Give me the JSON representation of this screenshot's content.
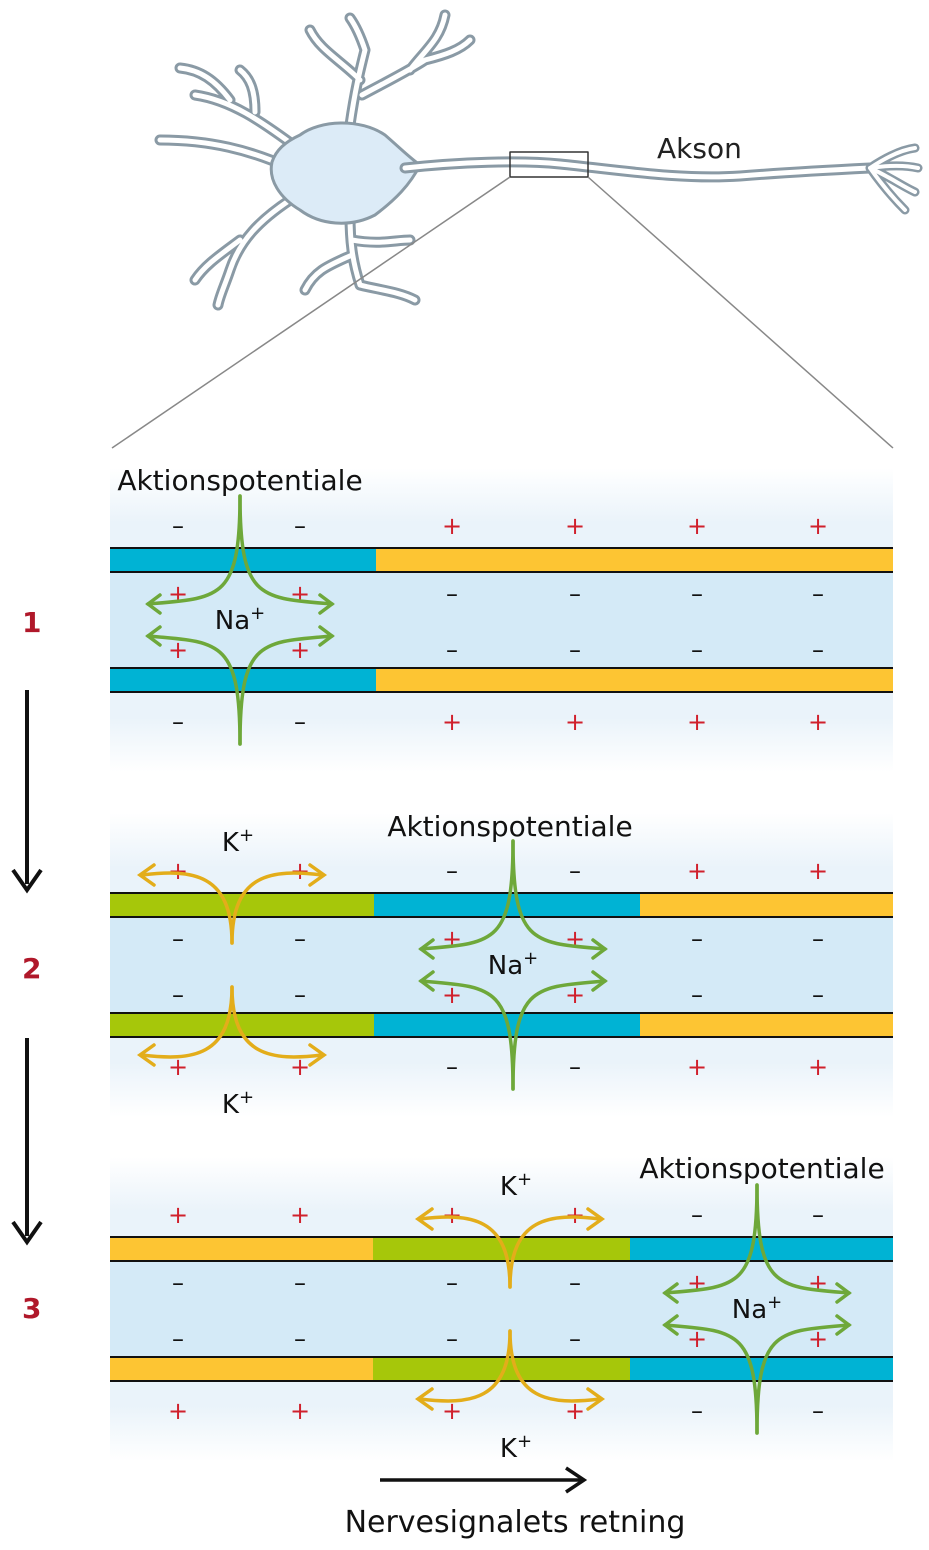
{
  "labels": {
    "akson": "Akson",
    "aktionspotentiale": "Aktionspotentiale",
    "na": "Na",
    "k": "K",
    "sup": "+",
    "direction": "Nervesignalets retning"
  },
  "charges": {
    "plus": "+",
    "minus": "–"
  },
  "steps": [
    {
      "number": "1"
    },
    {
      "number": "2"
    },
    {
      "number": "3"
    }
  ],
  "colors": {
    "depolarized": "#00b3d4",
    "resting": "#fdc533",
    "repolarizing": "#a6c70a",
    "axon_fill": "#d4eaf7",
    "cell_body": "#dcebf7",
    "neuron_outline": "#8a9aa5",
    "na_arrow": "#6ea83a",
    "k_arrow": "#e3ad1a",
    "plus": "#d0202c",
    "step_number": "#b0182a"
  }
}
